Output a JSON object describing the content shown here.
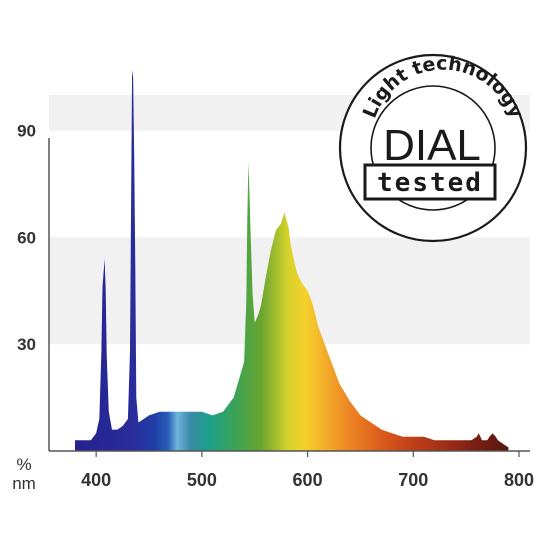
{
  "chart_data": {
    "type": "area",
    "title": "",
    "xlabel": "nm",
    "ylabel": "%",
    "xlim": [
      380,
      800
    ],
    "ylim": [
      0,
      100
    ],
    "x_ticks": [
      400,
      500,
      600,
      700,
      800
    ],
    "y_ticks": [
      30,
      60,
      90
    ],
    "grid": "alternating horizontal bands",
    "fill": "visible-spectrum color gradient",
    "series": [
      {
        "x": [
          380,
          395,
          400,
          403,
          405,
          406,
          408,
          409,
          410,
          412,
          415,
          420,
          425,
          430,
          432,
          434,
          435,
          436,
          437,
          438,
          440,
          445,
          450,
          460,
          470,
          480,
          490,
          500,
          510,
          520,
          530,
          535,
          540,
          542,
          543,
          544,
          545,
          546,
          548,
          550,
          553,
          556,
          560,
          565,
          570,
          575,
          578,
          580,
          582,
          584,
          586,
          590,
          595,
          600,
          605,
          610,
          615,
          620,
          625,
          630,
          640,
          650,
          660,
          670,
          680,
          690,
          700,
          710,
          720,
          730,
          740,
          750,
          755,
          760,
          762,
          765,
          770,
          772,
          775,
          778,
          780,
          785,
          790
        ],
        "y": [
          3,
          3,
          5,
          9,
          28,
          46,
          54,
          45,
          27,
          11,
          6,
          6,
          7,
          9,
          28,
          107,
          105,
          83,
          52,
          15,
          8,
          9,
          10,
          11,
          11,
          11,
          11,
          11,
          10,
          11,
          15,
          20,
          25,
          42,
          65,
          81,
          73,
          62,
          44,
          36,
          38,
          41,
          48,
          56,
          62,
          64,
          67,
          65,
          63,
          58,
          55,
          50,
          47,
          45,
          41,
          35,
          31,
          27,
          23,
          19,
          14,
          10,
          8,
          6,
          5,
          4,
          4,
          4,
          3,
          3,
          3,
          3,
          3,
          4,
          5,
          3,
          3,
          4,
          5,
          4,
          3,
          2,
          1
        ]
      }
    ]
  },
  "badge": {
    "arc_text": "Light technology",
    "main": "DIAL",
    "sub": "tested"
  }
}
